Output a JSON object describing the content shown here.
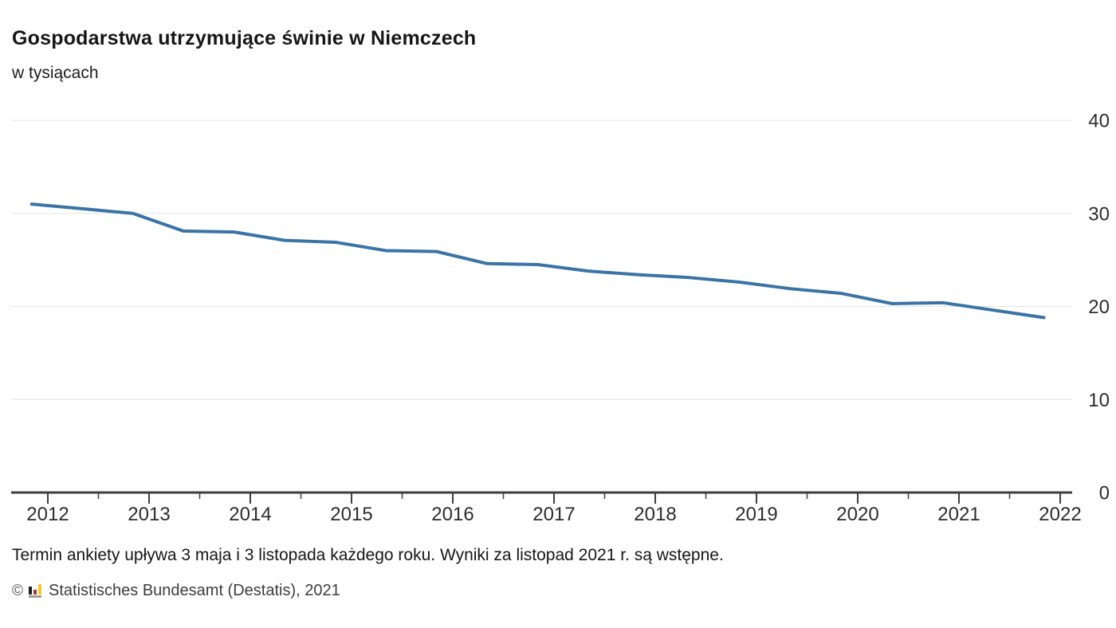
{
  "header": {
    "title": "Gospodarstwa utrzymujące świnie w Niemczech",
    "subtitle": "w tysiącach"
  },
  "footer": {
    "note": "Termin ankiety upływa 3 maja i 3 listopada każdego roku. Wyniki za listopad 2021 r. są wstępne.",
    "copyright": "©",
    "attribution": "Statistisches Bundesamt (Destatis), 2021"
  },
  "colors": {
    "line": "#3a74a6",
    "gridline": "#e4e4e4",
    "axis": "#3f3f3f",
    "tick": "#3f3f3f",
    "tick_label": "#2d2d2d",
    "logo_black": "#1d1d1b",
    "logo_red": "#b02f35",
    "logo_gold": "#f9c623",
    "logo_base": "#9c9c9c"
  },
  "chart_data": {
    "type": "line",
    "title": "Gospodarstwa utrzymujące świnie w Niemczech",
    "ylabel": "w tysiącach",
    "xlabel": "",
    "series": [
      {
        "name": "Gospodarstwa utrzymujące świnie (tys.)",
        "x": [
          2011.84,
          2012.34,
          2012.84,
          2013.34,
          2013.84,
          2014.34,
          2014.84,
          2015.34,
          2015.84,
          2016.34,
          2016.84,
          2017.34,
          2017.84,
          2018.34,
          2018.84,
          2019.34,
          2019.84,
          2020.34,
          2020.84,
          2021.34,
          2021.84
        ],
        "values": [
          31.0,
          30.5,
          30.0,
          28.1,
          28.0,
          27.1,
          26.9,
          26.0,
          25.9,
          24.6,
          24.5,
          23.8,
          23.4,
          23.1,
          22.6,
          21.9,
          21.4,
          20.3,
          20.4,
          19.6,
          18.8
        ]
      }
    ],
    "x_tick_labels": [
      "2012",
      "2013",
      "2014",
      "2015",
      "2016",
      "2017",
      "2018",
      "2019",
      "2020",
      "2021",
      "2022"
    ],
    "x_minor_ticks": "mid-year",
    "y_tick_labels": [
      "0",
      "10",
      "20",
      "30",
      "40"
    ],
    "y_ticks": [
      0,
      10,
      20,
      30,
      40
    ],
    "ylim": [
      0,
      40
    ],
    "xlim": [
      2011.64,
      2022.12
    ],
    "grid": "horizontal-only",
    "y_axis_position": "right",
    "legend": "none"
  }
}
